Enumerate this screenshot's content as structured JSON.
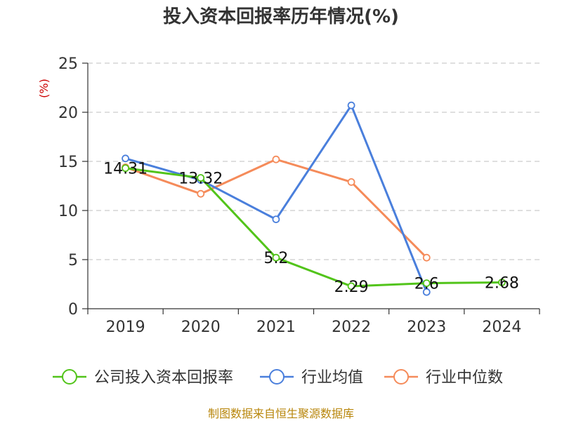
{
  "chart_data": {
    "type": "line",
    "title": "投入资本回报率历年情况(%)",
    "unit_label": "(%)",
    "categories": [
      "2019",
      "2020",
      "2021",
      "2022",
      "2023",
      "2024"
    ],
    "ylim": [
      0,
      25
    ],
    "yticks": [
      0,
      5,
      10,
      15,
      20,
      25
    ],
    "grid": true,
    "legend_position": "bottom",
    "series": [
      {
        "name": "公司投入资本回报率",
        "color": "#52c41a",
        "values": [
          14.31,
          13.32,
          5.2,
          2.29,
          2.6,
          2.68
        ],
        "labels": [
          "14.31",
          "13.32",
          "5.2",
          "2.29",
          "2.6",
          "2.68"
        ]
      },
      {
        "name": "行业均值",
        "color": "#4a7fdc",
        "values": [
          15.3,
          13.1,
          9.1,
          20.7,
          1.7,
          null
        ]
      },
      {
        "name": "行业中位数",
        "color": "#f58b5a",
        "values": [
          14.4,
          11.7,
          15.2,
          12.9,
          5.2,
          null
        ]
      }
    ]
  },
  "source": "制图数据来自恒生聚源数据库"
}
